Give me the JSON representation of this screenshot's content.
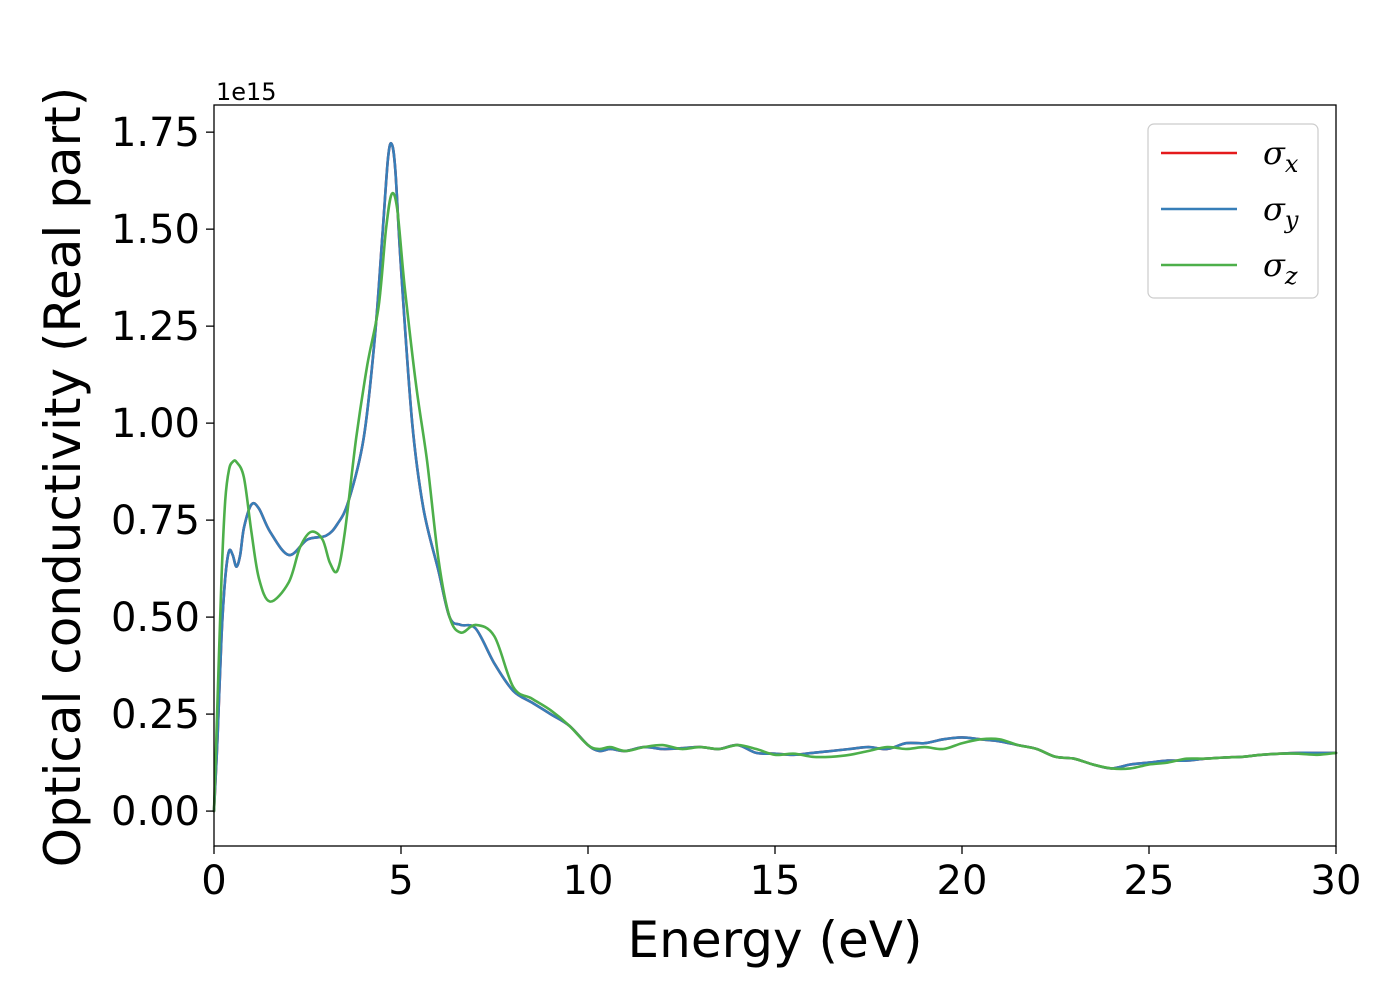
{
  "chart_data": {
    "type": "line",
    "xlabel": "Energy (eV)",
    "ylabel": "Optical conductivity (Real part)",
    "y_offset_label": "1e15",
    "xlim": [
      0,
      30
    ],
    "ylim": [
      -0.09,
      1.82
    ],
    "x_ticks": [
      "0",
      "5",
      "10",
      "15",
      "20",
      "25",
      "30"
    ],
    "x_tick_values": [
      0,
      5,
      10,
      15,
      20,
      25,
      30
    ],
    "y_ticks": [
      "0.00",
      "0.25",
      "0.50",
      "0.75",
      "1.00",
      "1.25",
      "1.50",
      "1.75"
    ],
    "y_tick_values": [
      0.0,
      0.25,
      0.5,
      0.75,
      1.0,
      1.25,
      1.5,
      1.75
    ],
    "grid": false,
    "legend_position": "top-right",
    "series": [
      {
        "name": "σx",
        "legend_symbol": "σ",
        "legend_subscript": "x",
        "color": "#e41a1c",
        "x": [
          0.0,
          0.1,
          0.2,
          0.3,
          0.4,
          0.5,
          0.6,
          0.7,
          0.8,
          1.0,
          1.2,
          1.5,
          2.0,
          2.5,
          3.0,
          3.3,
          3.6,
          4.0,
          4.3,
          4.5,
          4.65,
          4.75,
          4.85,
          5.0,
          5.3,
          5.6,
          6.0,
          6.3,
          6.6,
          7.0,
          7.5,
          8.0,
          8.5,
          9.0,
          9.5,
          10.0,
          10.3,
          10.6,
          11.0,
          11.5,
          12.0,
          12.5,
          13.0,
          13.5,
          14.0,
          14.5,
          15.0,
          15.5,
          16.0,
          16.5,
          17.0,
          17.5,
          18.0,
          18.5,
          19.0,
          19.5,
          20.0,
          20.5,
          21.0,
          21.5,
          22.0,
          22.5,
          23.0,
          23.5,
          24.0,
          24.5,
          25.0,
          25.5,
          26.0,
          26.5,
          27.0,
          27.5,
          28.0,
          28.5,
          29.0,
          29.5,
          30.0
        ],
        "y": [
          0.0,
          0.2,
          0.45,
          0.6,
          0.67,
          0.66,
          0.63,
          0.66,
          0.73,
          0.79,
          0.78,
          0.72,
          0.66,
          0.7,
          0.71,
          0.74,
          0.8,
          0.96,
          1.22,
          1.48,
          1.68,
          1.72,
          1.65,
          1.4,
          1.0,
          0.78,
          0.62,
          0.5,
          0.48,
          0.47,
          0.38,
          0.31,
          0.28,
          0.25,
          0.22,
          0.17,
          0.155,
          0.16,
          0.155,
          0.165,
          0.16,
          0.162,
          0.165,
          0.16,
          0.17,
          0.15,
          0.148,
          0.145,
          0.15,
          0.155,
          0.16,
          0.165,
          0.16,
          0.175,
          0.175,
          0.185,
          0.19,
          0.185,
          0.18,
          0.17,
          0.16,
          0.14,
          0.135,
          0.12,
          0.11,
          0.12,
          0.125,
          0.13,
          0.13,
          0.135,
          0.138,
          0.14,
          0.145,
          0.148,
          0.15,
          0.15,
          0.15
        ]
      },
      {
        "name": "σy",
        "legend_symbol": "σ",
        "legend_subscript": "y",
        "color": "#377eb8",
        "x": [
          0.0,
          0.1,
          0.2,
          0.3,
          0.4,
          0.5,
          0.6,
          0.7,
          0.8,
          1.0,
          1.2,
          1.5,
          2.0,
          2.5,
          3.0,
          3.3,
          3.6,
          4.0,
          4.3,
          4.5,
          4.65,
          4.75,
          4.85,
          5.0,
          5.3,
          5.6,
          6.0,
          6.3,
          6.6,
          7.0,
          7.5,
          8.0,
          8.5,
          9.0,
          9.5,
          10.0,
          10.3,
          10.6,
          11.0,
          11.5,
          12.0,
          12.5,
          13.0,
          13.5,
          14.0,
          14.5,
          15.0,
          15.5,
          16.0,
          16.5,
          17.0,
          17.5,
          18.0,
          18.5,
          19.0,
          19.5,
          20.0,
          20.5,
          21.0,
          21.5,
          22.0,
          22.5,
          23.0,
          23.5,
          24.0,
          24.5,
          25.0,
          25.5,
          26.0,
          26.5,
          27.0,
          27.5,
          28.0,
          28.5,
          29.0,
          29.5,
          30.0
        ],
        "y": [
          0.0,
          0.2,
          0.45,
          0.6,
          0.67,
          0.66,
          0.63,
          0.66,
          0.73,
          0.79,
          0.78,
          0.72,
          0.66,
          0.7,
          0.71,
          0.74,
          0.8,
          0.96,
          1.22,
          1.48,
          1.68,
          1.72,
          1.65,
          1.4,
          1.0,
          0.78,
          0.62,
          0.5,
          0.48,
          0.47,
          0.38,
          0.31,
          0.28,
          0.25,
          0.22,
          0.17,
          0.155,
          0.16,
          0.155,
          0.165,
          0.16,
          0.162,
          0.165,
          0.16,
          0.17,
          0.15,
          0.148,
          0.145,
          0.15,
          0.155,
          0.16,
          0.165,
          0.16,
          0.175,
          0.175,
          0.185,
          0.19,
          0.185,
          0.18,
          0.17,
          0.16,
          0.14,
          0.135,
          0.12,
          0.11,
          0.12,
          0.125,
          0.13,
          0.13,
          0.135,
          0.138,
          0.14,
          0.145,
          0.148,
          0.15,
          0.15,
          0.15
        ]
      },
      {
        "name": "σz",
        "legend_symbol": "σ",
        "legend_subscript": "z",
        "color": "#4daf4a",
        "x": [
          0.0,
          0.1,
          0.2,
          0.3,
          0.4,
          0.5,
          0.6,
          0.8,
          1.0,
          1.2,
          1.5,
          2.0,
          2.3,
          2.6,
          2.9,
          3.1,
          3.3,
          3.5,
          3.8,
          4.1,
          4.4,
          4.6,
          4.75,
          4.9,
          5.1,
          5.4,
          5.7,
          6.0,
          6.3,
          6.6,
          7.0,
          7.5,
          8.0,
          8.5,
          9.0,
          9.5,
          10.0,
          10.3,
          10.6,
          11.0,
          11.5,
          12.0,
          12.5,
          13.0,
          13.5,
          14.0,
          14.5,
          15.0,
          15.5,
          16.0,
          16.5,
          17.0,
          17.5,
          18.0,
          18.5,
          19.0,
          19.5,
          20.0,
          20.5,
          21.0,
          21.5,
          22.0,
          22.5,
          23.0,
          23.5,
          24.0,
          24.5,
          25.0,
          25.5,
          26.0,
          26.5,
          27.0,
          27.5,
          28.0,
          28.5,
          29.0,
          29.5,
          30.0
        ],
        "y": [
          0.0,
          0.3,
          0.6,
          0.8,
          0.88,
          0.9,
          0.9,
          0.86,
          0.72,
          0.6,
          0.54,
          0.59,
          0.68,
          0.72,
          0.7,
          0.64,
          0.62,
          0.72,
          0.96,
          1.15,
          1.3,
          1.5,
          1.59,
          1.55,
          1.35,
          1.1,
          0.9,
          0.65,
          0.5,
          0.46,
          0.48,
          0.45,
          0.32,
          0.29,
          0.26,
          0.22,
          0.17,
          0.16,
          0.165,
          0.155,
          0.165,
          0.17,
          0.16,
          0.165,
          0.16,
          0.17,
          0.16,
          0.145,
          0.148,
          0.14,
          0.14,
          0.145,
          0.155,
          0.165,
          0.16,
          0.165,
          0.16,
          0.175,
          0.185,
          0.185,
          0.17,
          0.16,
          0.14,
          0.135,
          0.12,
          0.11,
          0.11,
          0.12,
          0.125,
          0.135,
          0.135,
          0.138,
          0.14,
          0.145,
          0.148,
          0.148,
          0.145,
          0.15
        ]
      }
    ]
  }
}
